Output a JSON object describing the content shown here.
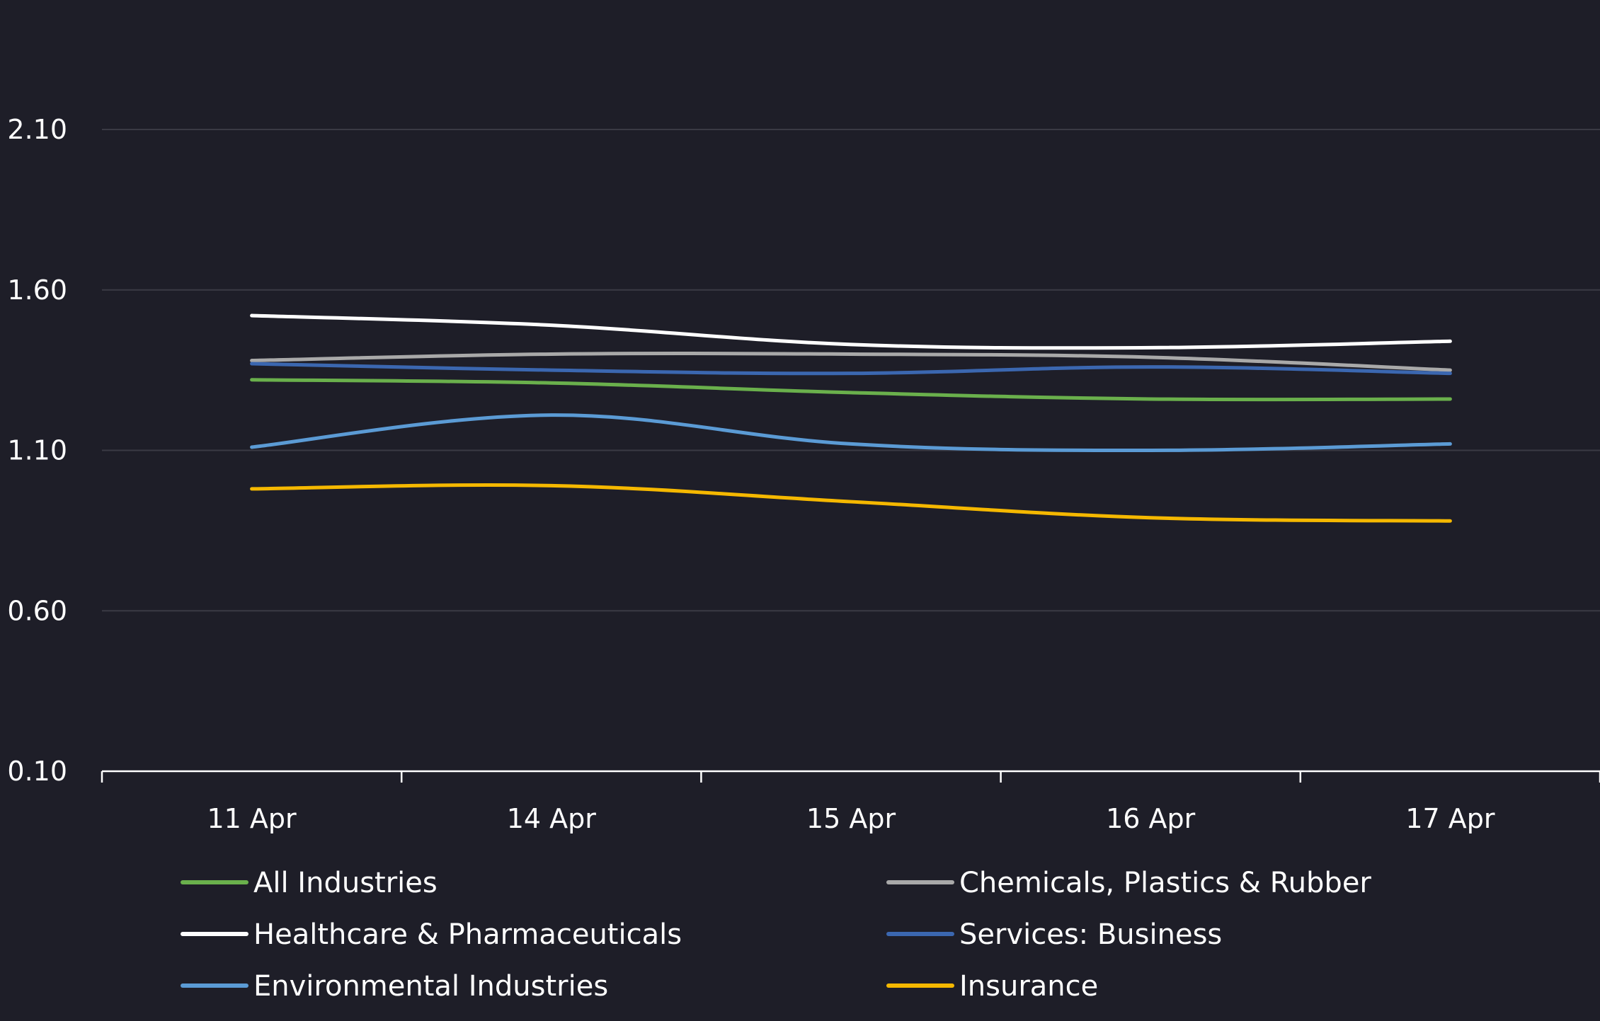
{
  "chart_data": {
    "type": "line",
    "categories": [
      "11 Apr",
      "14 Apr",
      "15 Apr",
      "16 Apr",
      "17 Apr"
    ],
    "ylim": [
      0.1,
      2.35
    ],
    "yticks": [
      "0.10",
      "0.60",
      "1.10",
      "1.60",
      "2.10"
    ],
    "grid": true,
    "legend_position": "bottom",
    "series": [
      {
        "name": "All Industries",
        "color": "#6ab04c",
        "values": [
          1.32,
          1.31,
          1.28,
          1.26,
          1.26
        ]
      },
      {
        "name": "Chemicals, Plastics & Rubber",
        "color": "#a9a9a9",
        "values": [
          1.38,
          1.4,
          1.4,
          1.39,
          1.35
        ]
      },
      {
        "name": "Healthcare & Pharmaceuticals",
        "color": "#ffffff",
        "values": [
          1.52,
          1.49,
          1.43,
          1.42,
          1.44
        ]
      },
      {
        "name": "Services: Business",
        "color": "#3b67b0",
        "values": [
          1.37,
          1.35,
          1.34,
          1.36,
          1.34
        ]
      },
      {
        "name": "Environmental Industries",
        "color": "#5b9bd5",
        "values": [
          1.11,
          1.21,
          1.12,
          1.1,
          1.12
        ]
      },
      {
        "name": "Insurance",
        "color": "#f5b800",
        "values": [
          0.98,
          0.99,
          0.94,
          0.89,
          0.88
        ]
      }
    ]
  }
}
